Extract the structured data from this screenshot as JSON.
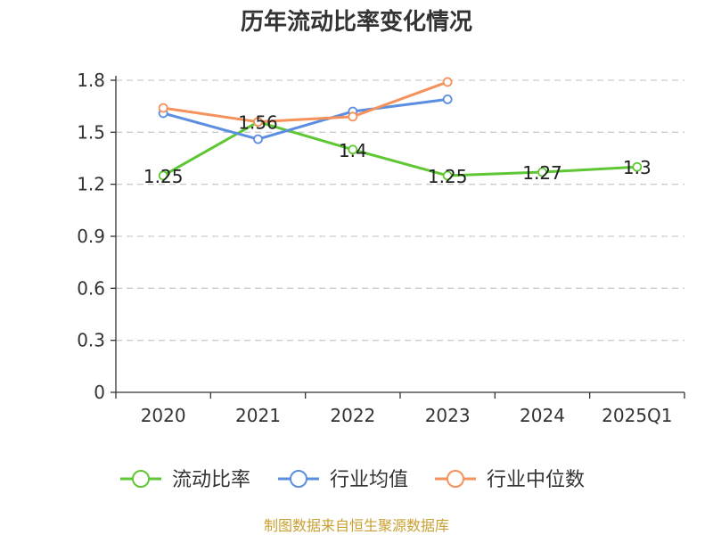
{
  "chart_data": {
    "type": "line",
    "title": "历年流动比率变化情况",
    "categories": [
      "2020",
      "2021",
      "2022",
      "2023",
      "2024",
      "2025Q1"
    ],
    "ylim": [
      0,
      1.8
    ],
    "yticks": [
      "0",
      "0.3",
      "0.6",
      "0.9",
      "1.2",
      "1.5",
      "1.8"
    ],
    "grid": true,
    "legend_position": "bottom",
    "series": [
      {
        "name": "流动比率",
        "color": "#5fc733",
        "values": [
          1.25,
          1.56,
          1.4,
          1.25,
          1.27,
          1.3
        ],
        "labels": [
          "1.25",
          "1.56",
          "1.4",
          "1.25",
          "1.27",
          "1.3"
        ]
      },
      {
        "name": "行业均值",
        "color": "#5b8de0",
        "values": [
          1.61,
          1.46,
          1.62,
          1.69,
          null,
          null
        ]
      },
      {
        "name": "行业中位数",
        "color": "#f5915a",
        "values": [
          1.64,
          1.56,
          1.59,
          1.79,
          null,
          null
        ]
      }
    ]
  },
  "source": "制图数据来自恒生聚源数据库"
}
